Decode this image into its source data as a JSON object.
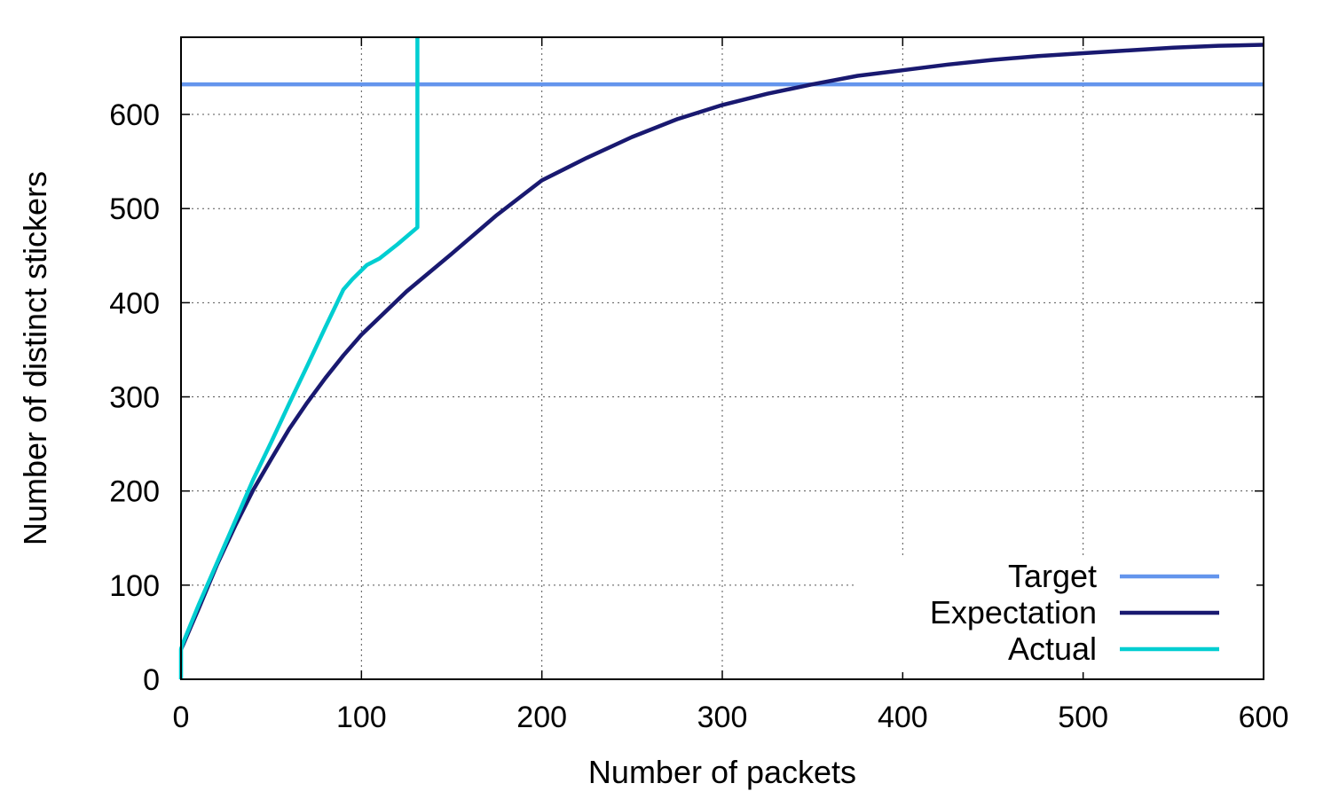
{
  "chart_data": {
    "type": "line",
    "title": "",
    "xlabel": "Number of packets",
    "ylabel": "Number of distinct stickers",
    "xlim": [
      0,
      600
    ],
    "ylim": [
      0,
      682
    ],
    "xticks": [
      0,
      100,
      200,
      300,
      400,
      500,
      600
    ],
    "yticks": [
      0,
      100,
      200,
      300,
      400,
      500,
      600
    ],
    "grid": true,
    "legend_position": "bottom-right",
    "series": [
      {
        "name": "Target",
        "color": "#6495ed",
        "x": [
          0,
          600
        ],
        "y": [
          632,
          632
        ]
      },
      {
        "name": "Expectation",
        "color": "#191970",
        "x": [
          0,
          1,
          5,
          10,
          20,
          30,
          40,
          50,
          60,
          70,
          80,
          90,
          100,
          125,
          150,
          175,
          200,
          225,
          250,
          275,
          300,
          325,
          350,
          375,
          400,
          425,
          450,
          475,
          500,
          525,
          550,
          575,
          600
        ],
        "y": [
          32,
          36,
          54,
          76,
          122,
          163,
          201,
          234,
          266,
          294,
          320,
          344,
          366,
          412,
          452,
          493,
          530,
          554,
          576,
          595,
          610,
          622,
          632,
          641,
          647,
          653,
          658,
          662,
          665,
          668,
          671,
          673,
          674
        ]
      },
      {
        "name": "Actual",
        "color": "#00ced1",
        "x": [
          0,
          0,
          1,
          10,
          20,
          30,
          40,
          50,
          60,
          70,
          80,
          90,
          95,
          103,
          110,
          120,
          131,
          131
        ],
        "y": [
          0,
          32,
          38,
          80,
          124,
          168,
          212,
          252,
          293,
          333,
          374,
          414,
          425,
          440,
          447,
          462,
          480,
          682
        ]
      }
    ]
  }
}
